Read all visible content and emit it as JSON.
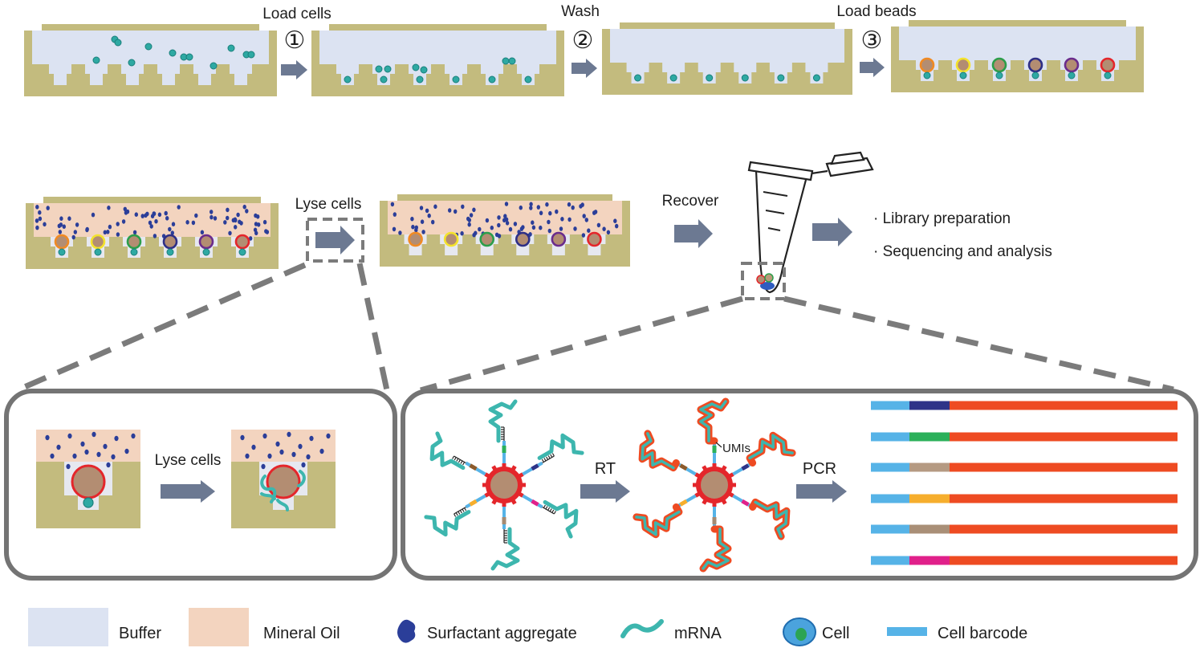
{
  "colors": {
    "buffer": "#dce3f2",
    "oil": "#f3d4bf",
    "chip": "#c3bb7e",
    "well": "#e6e8f0",
    "cell": "#2ea9a3",
    "cell_outline": "#1a7f7b",
    "surfactant": "#2b3e99",
    "mrna": "#3db6ae",
    "cdna": "#ee4b22",
    "barcode": "#56b3e7",
    "arrow": "#6c7992",
    "bead_core": "#b38d72",
    "bead_rim": "#e4262b",
    "dashed": "#7b7b7b",
    "frame": "#747474"
  },
  "steps": {
    "load_cells": {
      "number": "①",
      "label": "Load cells"
    },
    "wash": {
      "number": "②",
      "label": "Wash"
    },
    "load_beads": {
      "number": "③",
      "label": "Load beads"
    },
    "lyse_cells": {
      "label": "Lyse cells"
    },
    "recover": {
      "label": "Recover"
    }
  },
  "downstream": {
    "items": [
      "· Library preparation",
      "· Sequencing and analysis"
    ]
  },
  "lysis_inset": {
    "label": "Lyse cells"
  },
  "capture_inset": {
    "rt_label": "RT",
    "umi_label": "UMIs",
    "pcr_label": "PCR"
  },
  "bead_rim_colors": [
    "#f08a24",
    "#f4e32c",
    "#2c9e4a",
    "#2e2f86",
    "#6b2c8c",
    "#e4262b"
  ],
  "spoke_colors": [
    "#2bb05a",
    "#2e3388",
    "#e0208a",
    "#a48a72",
    "#f6ae2d",
    "#8b5a2b"
  ],
  "barcode_colors": [
    "#2e3388",
    "#2bb05a",
    "#b59a82",
    "#f6ae2d",
    "#a98f77",
    "#e0208a"
  ],
  "legend": [
    {
      "icon": "buffer-swatch",
      "label": "Buffer"
    },
    {
      "icon": "mineral-oil-swatch",
      "label": "Mineral Oil"
    },
    {
      "icon": "surfactant-aggregate-icon",
      "label": "Surfactant aggregate"
    },
    {
      "icon": "mrna-icon",
      "label": "mRNA"
    },
    {
      "icon": "cell-icon",
      "label": "Cell"
    },
    {
      "icon": "cell-barcode-icon",
      "label": "Cell barcode"
    }
  ]
}
